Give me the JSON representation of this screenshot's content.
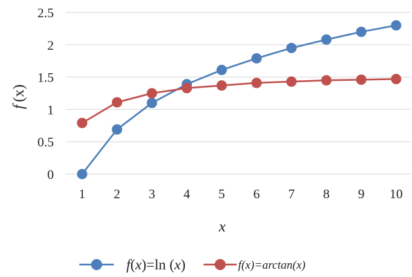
{
  "chart_data": {
    "type": "line",
    "x": [
      1,
      2,
      3,
      4,
      5,
      6,
      7,
      8,
      9,
      10
    ],
    "ylim": [
      0,
      2.5
    ],
    "y_ticks": [
      0,
      0.5,
      1,
      1.5,
      2,
      2.5
    ],
    "y_tick_labels": [
      "0",
      "0.5",
      "1",
      "1.5",
      "2",
      "2.5"
    ],
    "x_tick_labels": [
      "1",
      "2",
      "3",
      "4",
      "5",
      "6",
      "7",
      "8",
      "9",
      "10"
    ],
    "grid": "horizontal",
    "legend_position": "bottom",
    "xlabel": "x",
    "ylabel_parts": {
      "f": "f",
      "x": "(x)"
    },
    "series": [
      {
        "legend_parts": {
          "f": "f",
          "open": "(",
          "x": "x",
          "rest": ")=ln (",
          "x2": "x",
          "close": ")"
        },
        "color": "#4e7fbb",
        "values": [
          0,
          0.69,
          1.1,
          1.39,
          1.61,
          1.79,
          1.95,
          2.08,
          2.2,
          2.3
        ]
      },
      {
        "name": "f(x)=arctan(x)",
        "color": "#c0504d",
        "values": [
          0.79,
          1.11,
          1.25,
          1.33,
          1.37,
          1.41,
          1.43,
          1.45,
          1.46,
          1.47
        ]
      }
    ]
  }
}
